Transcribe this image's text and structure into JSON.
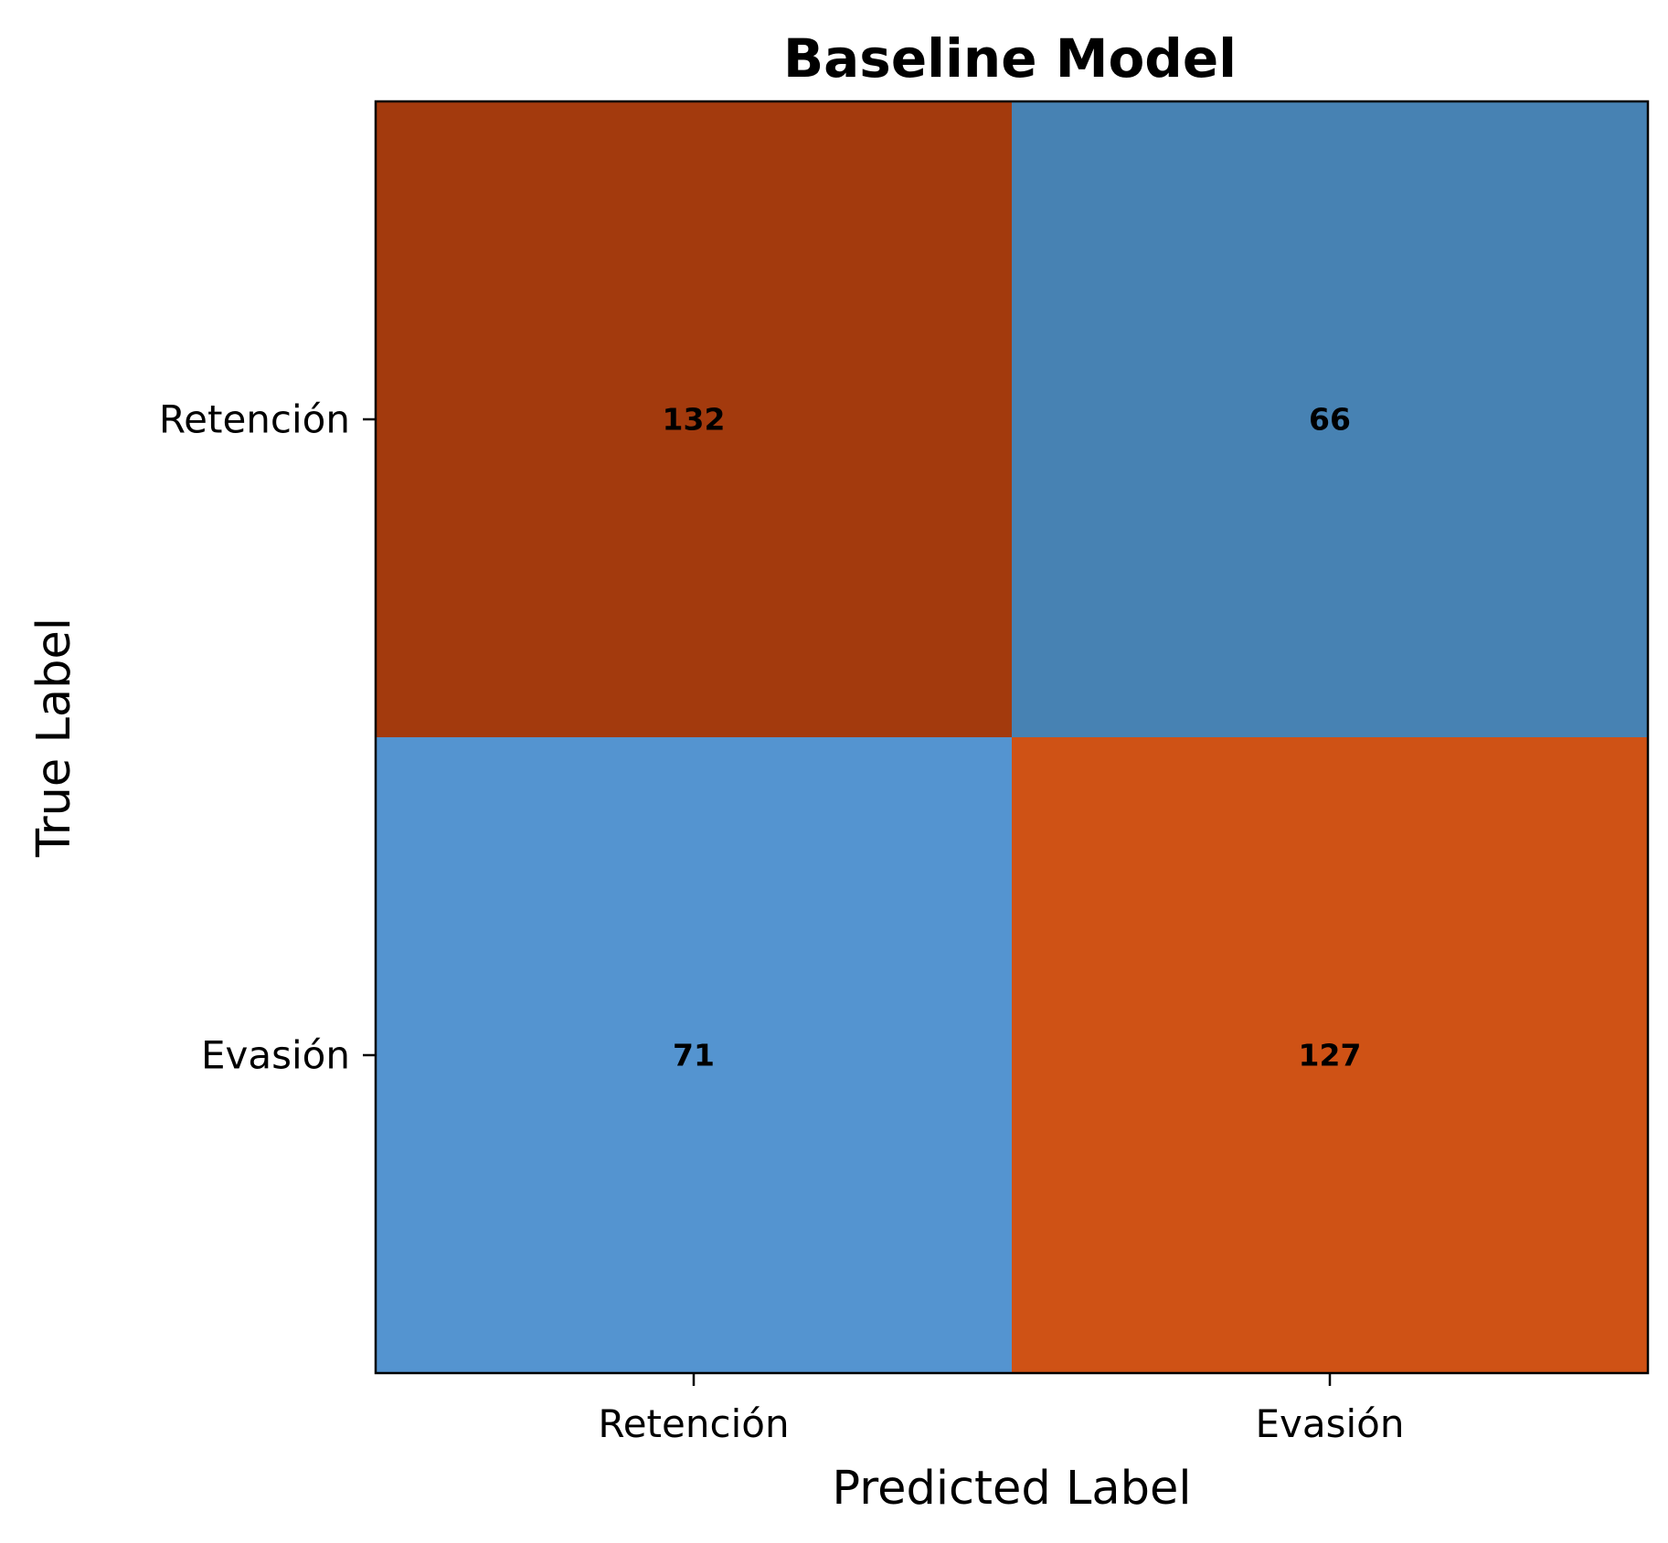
{
  "chart_data": {
    "type": "heatmap",
    "title": "Baseline Model",
    "xlabel": "Predicted Label",
    "ylabel": "True Label",
    "x_categories": [
      "Retención",
      "Evasión"
    ],
    "y_categories": [
      "Retención",
      "Evasión"
    ],
    "values": [
      [
        132,
        66
      ],
      [
        71,
        127
      ]
    ],
    "cell_colors": [
      [
        "#a33a0d",
        "#4782b3"
      ],
      [
        "#5494d0",
        "#cf5215"
      ]
    ],
    "grid": false,
    "legend": "none"
  }
}
